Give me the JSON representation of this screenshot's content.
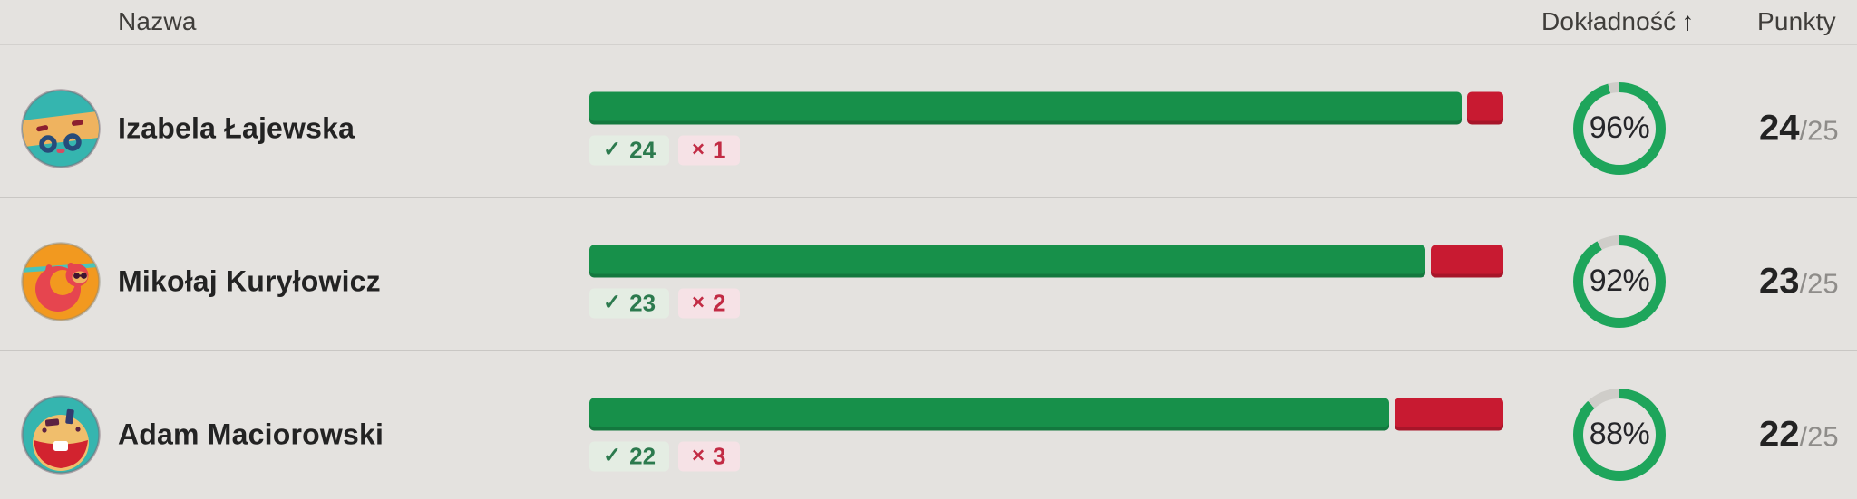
{
  "header": {
    "name_label": "Nazwa",
    "accuracy_label": "Dokładność",
    "accuracy_sort_arrow": "↑",
    "points_label": "Punkty"
  },
  "icons": {
    "check": "✓",
    "cross": "×"
  },
  "quiz": {
    "questions_total": 25
  },
  "rows": [
    {
      "name": "Izabela Łajewska",
      "avatar": "teal-masked",
      "correct": 24,
      "wrong": 1,
      "accuracy_pct": 96,
      "accuracy_label": "96%",
      "points_label": "24",
      "points_total_label": "/25"
    },
    {
      "name": "Mikołaj Kuryłowicz",
      "avatar": "orange-sloth",
      "correct": 23,
      "wrong": 2,
      "accuracy_pct": 92,
      "accuracy_label": "92%",
      "points_label": "23",
      "points_total_label": "/25"
    },
    {
      "name": "Adam Maciorowski",
      "avatar": "teal-laughing",
      "correct": 22,
      "wrong": 3,
      "accuracy_pct": 88,
      "accuracy_label": "88%",
      "points_label": "22",
      "points_total_label": "/25"
    }
  ],
  "colors": {
    "bg": "#e4e2df",
    "header_text": "#3f3d3a",
    "text_dark": "#232323",
    "text_muted": "#8e8c89",
    "divider": "#c9c7c4",
    "bar_green": "#17904a",
    "bar_red": "#c81a31",
    "ring_green": "#1ea55b",
    "ring_track": "#cfcdc9",
    "pill_green_bg": "#e4ede3",
    "pill_green_text": "#2c7a4e",
    "pill_red_bg": "#f6e2e6",
    "pill_red_text": "#c22b44"
  }
}
